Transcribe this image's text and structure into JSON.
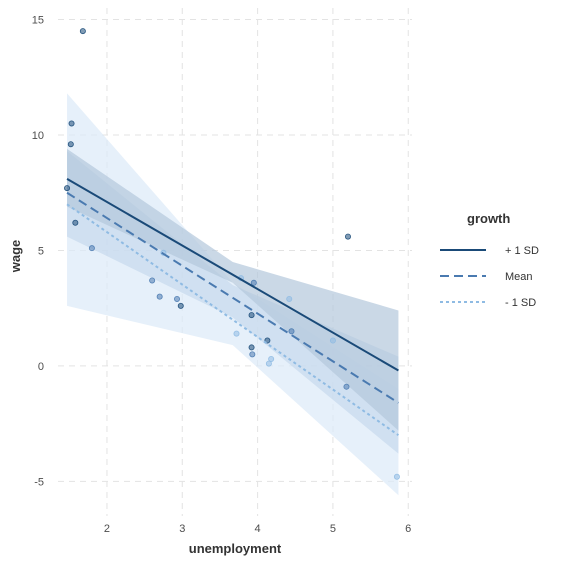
{
  "chart_data": {
    "type": "line",
    "title": "",
    "xlabel": "unemployment",
    "ylabel": "wage",
    "xlim": [
      1.35,
      6.05
    ],
    "ylim": [
      -6.5,
      15.5
    ],
    "x_ticks": [
      2,
      3,
      4,
      5,
      6
    ],
    "y_ticks": [
      -5,
      0,
      5,
      10,
      15
    ],
    "grid": true,
    "legend": {
      "title": "growth",
      "position": "right",
      "entries": [
        {
          "label": "+ 1 SD",
          "color": "#1a4a78",
          "dash": "solid"
        },
        {
          "label": "Mean",
          "color": "#4a7ab0",
          "dash": "dashed"
        },
        {
          "label": "- 1 SD",
          "color": "#8fbbe3",
          "dash": "dotted"
        }
      ]
    },
    "series": [
      {
        "name": "+ 1 SD",
        "color": "#1a4a78",
        "band_color": "#b3c7dc",
        "dash": "solid",
        "line": {
          "x": [
            1.47,
            5.87
          ],
          "y": [
            8.1,
            -0.2
          ]
        },
        "ci_upper": {
          "x": [
            1.47,
            3.67,
            5.87
          ],
          "y": [
            9.4,
            4.5,
            2.4
          ]
        },
        "ci_lower": {
          "x": [
            1.47,
            3.67,
            5.87
          ],
          "y": [
            6.9,
            3.6,
            -2.8
          ]
        }
      },
      {
        "name": "Mean",
        "color": "#4a7ab0",
        "band_color": "#c6d9ed",
        "dash": "dashed",
        "line": {
          "x": [
            1.47,
            5.87
          ],
          "y": [
            7.5,
            -1.6
          ]
        },
        "ci_upper": {
          "x": [
            1.47,
            3.67,
            5.87
          ],
          "y": [
            9.3,
            3.5,
            0.4
          ]
        },
        "ci_lower": {
          "x": [
            1.47,
            3.67,
            5.87
          ],
          "y": [
            5.6,
            2.1,
            -3.8
          ]
        }
      },
      {
        "name": "- 1 SD",
        "color": "#8fbbe3",
        "band_color": "#dbeaf8",
        "dash": "dotted",
        "line": {
          "x": [
            1.47,
            5.87
          ],
          "y": [
            7.0,
            -3.0
          ]
        },
        "ci_upper": {
          "x": [
            1.47,
            3.67,
            5.87
          ],
          "y": [
            11.8,
            3.6,
            -1.0
          ]
        },
        "ci_lower": {
          "x": [
            1.47,
            3.67,
            5.87
          ],
          "y": [
            2.6,
            0.9,
            -5.6
          ]
        }
      }
    ],
    "points": [
      {
        "x": 1.68,
        "y": 14.5,
        "group": "+ 1 SD"
      },
      {
        "x": 1.53,
        "y": 10.5,
        "group": "+ 1 SD"
      },
      {
        "x": 1.52,
        "y": 9.6,
        "group": "+ 1 SD"
      },
      {
        "x": 1.47,
        "y": 7.7,
        "group": "+ 1 SD"
      },
      {
        "x": 1.58,
        "y": 6.2,
        "group": "+ 1 SD"
      },
      {
        "x": 1.8,
        "y": 5.1,
        "group": "Mean"
      },
      {
        "x": 2.6,
        "y": 3.7,
        "group": "Mean"
      },
      {
        "x": 2.7,
        "y": 3.0,
        "group": "Mean"
      },
      {
        "x": 2.93,
        "y": 2.9,
        "group": "Mean"
      },
      {
        "x": 2.98,
        "y": 2.6,
        "group": "+ 1 SD"
      },
      {
        "x": 2.75,
        "y": 4.9,
        "group": "- 1 SD"
      },
      {
        "x": 3.72,
        "y": 1.4,
        "group": "- 1 SD"
      },
      {
        "x": 3.78,
        "y": 3.8,
        "group": "- 1 SD"
      },
      {
        "x": 3.92,
        "y": 2.2,
        "group": "+ 1 SD"
      },
      {
        "x": 3.95,
        "y": 3.6,
        "group": "Mean"
      },
      {
        "x": 3.92,
        "y": 0.8,
        "group": "+ 1 SD"
      },
      {
        "x": 3.93,
        "y": 0.5,
        "group": "Mean"
      },
      {
        "x": 4.13,
        "y": 1.1,
        "group": "+ 1 SD"
      },
      {
        "x": 4.18,
        "y": 0.3,
        "group": "- 1 SD"
      },
      {
        "x": 4.15,
        "y": 0.1,
        "group": "- 1 SD"
      },
      {
        "x": 4.42,
        "y": 2.9,
        "group": "- 1 SD"
      },
      {
        "x": 4.45,
        "y": 1.5,
        "group": "Mean"
      },
      {
        "x": 5.0,
        "y": 1.1,
        "group": "- 1 SD"
      },
      {
        "x": 5.2,
        "y": 5.6,
        "group": "+ 1 SD"
      },
      {
        "x": 5.18,
        "y": -0.9,
        "group": "Mean"
      },
      {
        "x": 5.85,
        "y": -4.8,
        "group": "- 1 SD"
      }
    ]
  }
}
